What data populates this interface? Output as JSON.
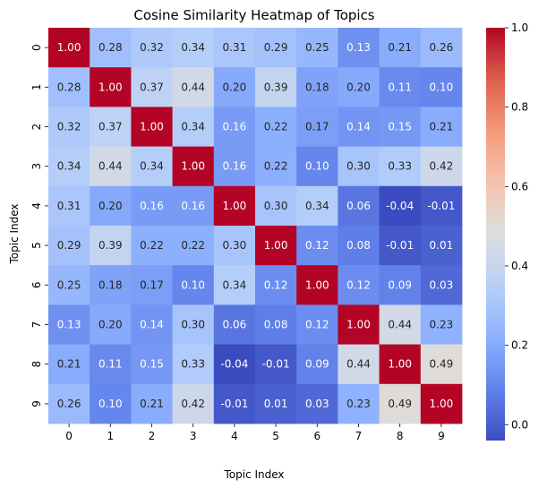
{
  "chart_data": {
    "type": "heatmap",
    "title": "Cosine Similarity Heatmap of Topics",
    "xlabel": "Topic Index",
    "ylabel": "Topic Index",
    "x_categories": [
      "0",
      "1",
      "2",
      "3",
      "4",
      "5",
      "6",
      "7",
      "8",
      "9"
    ],
    "y_categories": [
      "0",
      "1",
      "2",
      "3",
      "4",
      "5",
      "6",
      "7",
      "8",
      "9"
    ],
    "values": [
      [
        1.0,
        0.28,
        0.32,
        0.34,
        0.31,
        0.29,
        0.25,
        0.13,
        0.21,
        0.26
      ],
      [
        0.28,
        1.0,
        0.37,
        0.44,
        0.2,
        0.39,
        0.18,
        0.2,
        0.11,
        0.1
      ],
      [
        0.32,
        0.37,
        1.0,
        0.34,
        0.16,
        0.22,
        0.17,
        0.14,
        0.15,
        0.21
      ],
      [
        0.34,
        0.44,
        0.34,
        1.0,
        0.16,
        0.22,
        0.1,
        0.3,
        0.33,
        0.42
      ],
      [
        0.31,
        0.2,
        0.16,
        0.16,
        1.0,
        0.3,
        0.34,
        0.06,
        -0.04,
        -0.01
      ],
      [
        0.29,
        0.39,
        0.22,
        0.22,
        0.3,
        1.0,
        0.12,
        0.08,
        -0.01,
        0.01
      ],
      [
        0.25,
        0.18,
        0.17,
        0.1,
        0.34,
        0.12,
        1.0,
        0.12,
        0.09,
        0.03
      ],
      [
        0.13,
        0.2,
        0.14,
        0.3,
        0.06,
        0.08,
        0.12,
        1.0,
        0.44,
        0.23
      ],
      [
        0.21,
        0.11,
        0.15,
        0.33,
        -0.04,
        -0.01,
        0.09,
        0.44,
        1.0,
        0.49
      ],
      [
        0.26,
        0.1,
        0.21,
        0.42,
        -0.01,
        0.01,
        0.03,
        0.23,
        0.49,
        1.0
      ]
    ],
    "value_format": "0.00",
    "colormap": "coolwarm",
    "vmin": -0.04,
    "vmax": 1.0,
    "colorbar_ticks": [
      0.0,
      0.2,
      0.4,
      0.6,
      0.8,
      1.0
    ],
    "colorbar_tick_labels": [
      "0.0",
      "0.2",
      "0.4",
      "0.6",
      "0.8",
      "1.0"
    ],
    "grid": false,
    "legend": "colorbar-right"
  }
}
